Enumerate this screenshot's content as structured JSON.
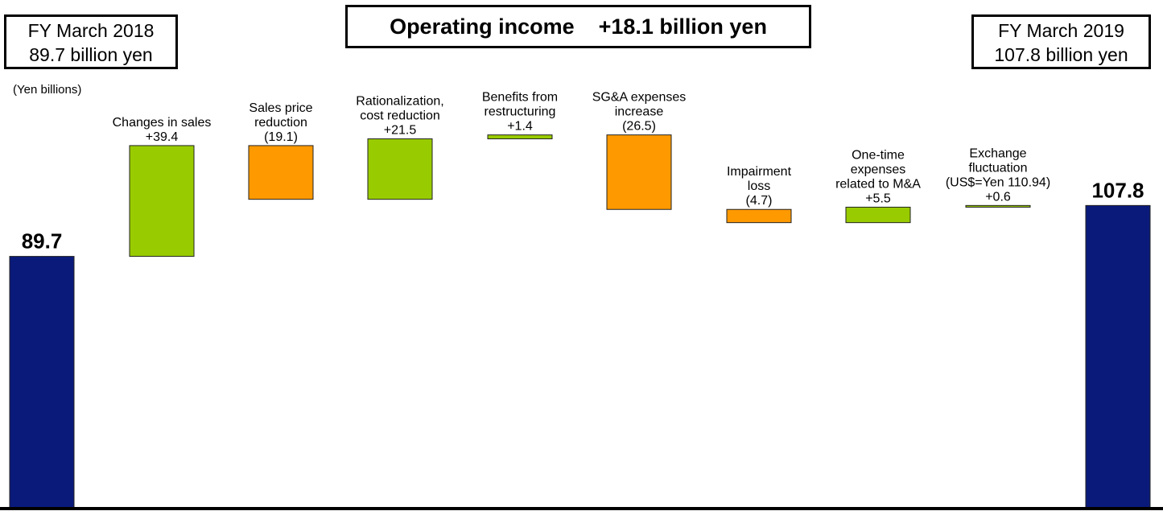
{
  "header": {
    "start_box": [
      "FY March 2018",
      "89.7 billion yen"
    ],
    "title": "Operating income    +18.1 billion yen",
    "end_box": [
      "FY March 2019",
      "107.8 billion yen"
    ]
  },
  "unit_label": "(Yen billions)",
  "colors": {
    "total": "#0a1a7a",
    "increase": "#99cc00",
    "decrease": "#ff9900",
    "outline": "#222222"
  },
  "chart_data": {
    "type": "waterfall",
    "title": "Operating income    +18.1 billion yen",
    "ylabel": "(Yen billions)",
    "ylim": [
      0,
      115
    ],
    "items": [
      {
        "kind": "total",
        "value": 89.7,
        "label_lines": [],
        "value_text": "89.7"
      },
      {
        "kind": "delta",
        "value": 39.4,
        "label_lines": [
          "Changes in sales"
        ],
        "value_text": "+39.4"
      },
      {
        "kind": "delta",
        "value": -19.1,
        "label_lines": [
          "Sales price",
          "reduction"
        ],
        "value_text": "(19.1)"
      },
      {
        "kind": "delta",
        "value": 21.5,
        "label_lines": [
          "Rationalization,",
          "cost reduction"
        ],
        "value_text": "+21.5"
      },
      {
        "kind": "delta",
        "value": 1.4,
        "label_lines": [
          "Benefits from",
          "restructuring"
        ],
        "value_text": "+1.4"
      },
      {
        "kind": "delta",
        "value": -26.5,
        "label_lines": [
          "SG&A expenses",
          "increase"
        ],
        "value_text": "(26.5)"
      },
      {
        "kind": "delta",
        "value": -4.7,
        "label_lines": [
          "Impairment",
          "loss"
        ],
        "value_text": "(4.7)"
      },
      {
        "kind": "delta",
        "value": 5.5,
        "label_lines": [
          "One-time",
          "expenses",
          "related to M&A"
        ],
        "value_text": "+5.5"
      },
      {
        "kind": "delta",
        "value": 0.6,
        "label_lines": [
          "Exchange",
          "fluctuation",
          "(US$=Yen 110.94)"
        ],
        "value_text": "+0.6"
      },
      {
        "kind": "total",
        "value": 107.8,
        "label_lines": [],
        "value_text": "107.8"
      }
    ]
  }
}
